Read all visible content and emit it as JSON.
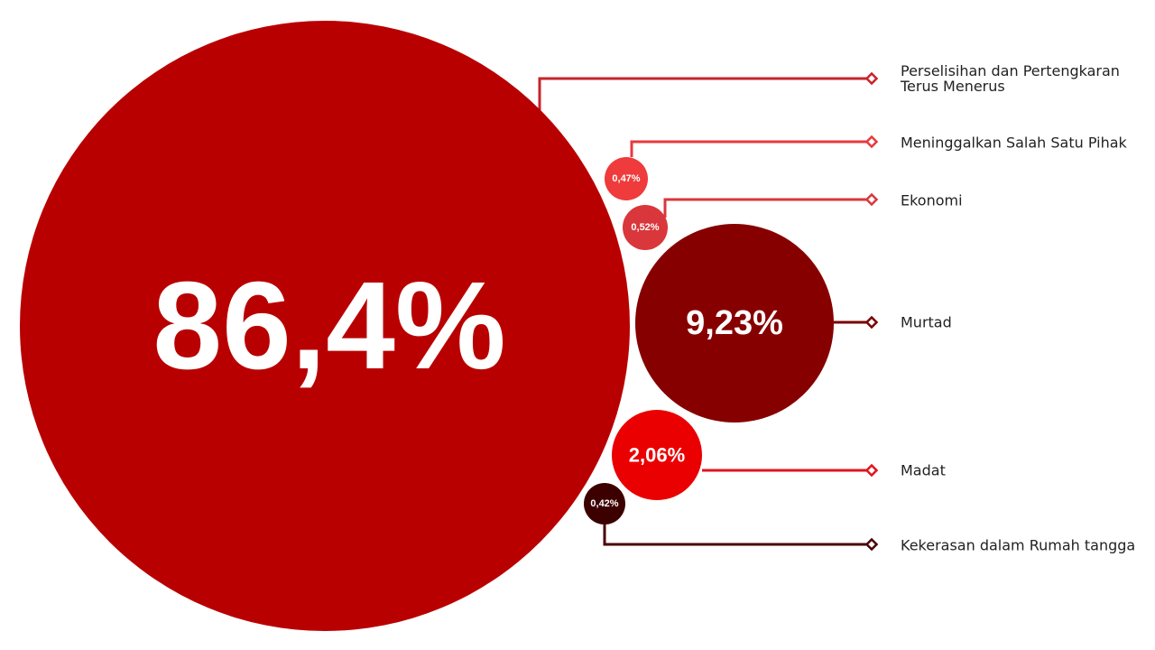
{
  "chart_data": {
    "type": "bubble",
    "title": "",
    "series": [
      {
        "name": "Perselisihan dan Pertengkaran Terus Menerus",
        "label_lines": [
          "Perselisihan dan Pertengkaran",
          "Terus Menerus"
        ],
        "value": 86.4,
        "display": "86,4%",
        "color": "#b90000",
        "connector_color": "#c8232a"
      },
      {
        "name": "Meninggalkan Salah Satu Pihak",
        "label_lines": [
          "Meninggalkan Salah Satu Pihak"
        ],
        "value": 0.47,
        "display": "0,47%",
        "color": "#ef3b3b",
        "connector_color": "#e8383d"
      },
      {
        "name": "Ekonomi",
        "label_lines": [
          "Ekonomi"
        ],
        "value": 0.52,
        "display": "0,52%",
        "color": "#d9373b",
        "connector_color": "#d9373b"
      },
      {
        "name": "Murtad",
        "label_lines": [
          "Murtad"
        ],
        "value": 9.23,
        "display": "9,23%",
        "color": "#870000",
        "connector_color": "#7a0000"
      },
      {
        "name": "Madat",
        "label_lines": [
          "Madat"
        ],
        "value": 2.06,
        "display": "2,06%",
        "color": "#ea0000",
        "connector_color": "#e0141c"
      },
      {
        "name": "Kekerasan dalam Rumah tangga",
        "label_lines": [
          "Kekerasan dalam Rumah tangga"
        ],
        "value": 0.42,
        "display": "0,42%",
        "color": "#3d0000",
        "connector_color": "#4a0000"
      }
    ]
  }
}
